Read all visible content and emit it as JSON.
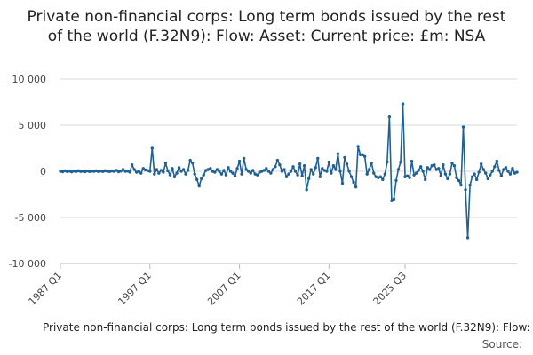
{
  "chart_data": {
    "type": "line",
    "title": "Private non-financial corps: Long term bonds issued by the rest of the world (F.32N9): Flow: Asset: Current price: £m: NSA",
    "legend": "Private non-financial corps: Long term bonds issued by the rest of the world (F.32N9): Flow: Asset: Current price: £m: NSA",
    "source_label": "Source:",
    "ylim": [
      -10000,
      10000
    ],
    "y_ticks": [
      10000,
      5000,
      0,
      -5000,
      -10000
    ],
    "y_tick_labels": [
      "10 000",
      "5 000",
      "0",
      "-5 000",
      "-10 000"
    ],
    "x_ticks": [
      "1987 Q1",
      "1997 Q1",
      "2007 Q1",
      "2017 Q1",
      "2025 Q3"
    ],
    "grid": "horizontal",
    "colors": {
      "series": "#206095",
      "grid": "#d9d9d9",
      "axis": "#bbbbbb"
    },
    "series": [
      {
        "name": "Private non-financial corps: Long term bonds issued by the rest of the world (F.32N9): Flow: Asset: Current price: £m: NSA",
        "start": "1987 Q1",
        "values": [
          0,
          -50,
          50,
          -30,
          20,
          -60,
          30,
          -40,
          60,
          -20,
          10,
          -50,
          40,
          -30,
          20,
          -10,
          50,
          -40,
          30,
          -20,
          60,
          0,
          -30,
          40,
          -10,
          100,
          -50,
          30,
          200,
          0,
          20,
          -80,
          700,
          200,
          -100,
          0,
          -200,
          300,
          150,
          80,
          0,
          2500,
          -300,
          200,
          -200,
          100,
          -100,
          900,
          50,
          -400,
          300,
          -600,
          -200,
          400,
          0,
          200,
          -300,
          100,
          1200,
          900,
          -300,
          -900,
          -1600,
          -800,
          -400,
          100,
          200,
          300,
          0,
          -100,
          200,
          0,
          -300,
          100,
          -400,
          400,
          0,
          -200,
          -500,
          300,
          1100,
          -300,
          1400,
          200,
          0,
          -200,
          100,
          -300,
          -400,
          -100,
          0,
          100,
          300,
          0,
          -200,
          200,
          500,
          1200,
          700,
          0,
          200,
          -600,
          -300,
          0,
          500,
          0,
          -400,
          800,
          -500,
          600,
          -2000,
          -800,
          200,
          -300,
          400,
          1400,
          -600,
          300,
          100,
          0,
          1000,
          -200,
          600,
          200,
          1900,
          0,
          -1300,
          1500,
          800,
          0,
          -600,
          -1200,
          -1700,
          2700,
          1800,
          1800,
          1600,
          -300,
          200,
          900,
          -200,
          -600,
          -700,
          -600,
          -900,
          -300,
          1000,
          5900,
          -3200,
          -3000,
          -1000,
          200,
          1000,
          7300,
          -600,
          -500,
          -700,
          1100,
          -400,
          -200,
          100,
          500,
          0,
          -900,
          400,
          200,
          600,
          700,
          200,
          300,
          -500,
          700,
          -300,
          -800,
          -300,
          900,
          600,
          -700,
          -1000,
          -1500,
          4800,
          -2000,
          -7200,
          -1500,
          -600,
          -300,
          -900,
          -100,
          800,
          200,
          -200,
          -800,
          -400,
          0,
          500,
          1100,
          100,
          -500,
          200,
          400,
          0,
          -300,
          300,
          -200,
          -100
        ]
      }
    ]
  }
}
